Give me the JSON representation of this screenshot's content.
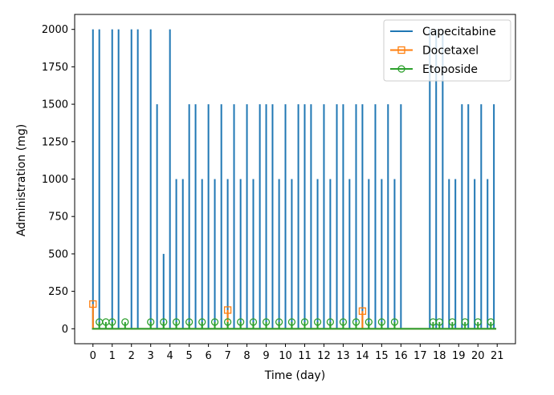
{
  "chart_data": {
    "type": "line",
    "xlabel": "Time (day)",
    "ylabel": "Administration (mg)",
    "xlim": [
      -0.95,
      21.95
    ],
    "ylim": [
      -100,
      2100
    ],
    "x_ticks": [
      0,
      1,
      2,
      3,
      4,
      5,
      6,
      7,
      8,
      9,
      10,
      11,
      12,
      13,
      14,
      15,
      16,
      17,
      18,
      19,
      20,
      21
    ],
    "x_tick_labels": [
      "0",
      "1",
      "2",
      "3",
      "4",
      "5",
      "6",
      "7",
      "8",
      "9",
      "10",
      "11",
      "12",
      "13",
      "14",
      "15",
      "16",
      "17",
      "18",
      "19",
      "20",
      "21"
    ],
    "y_ticks": [
      0,
      250,
      500,
      750,
      1000,
      1250,
      1500,
      1750,
      2000
    ],
    "y_tick_labels": [
      "0",
      "250",
      "500",
      "750",
      "1000",
      "1250",
      "1500",
      "1750",
      "2000"
    ],
    "grid": false,
    "legend_position": "top-right",
    "series": [
      {
        "name": "Capecitabine",
        "color": "#1f77b4",
        "marker": "none",
        "style": "impulse",
        "x": [
          0.0,
          0.33,
          1.0,
          1.33,
          2.0,
          2.33,
          3.0,
          3.33,
          3.67,
          4.0,
          4.33,
          4.67,
          5.0,
          5.33,
          5.67,
          6.0,
          6.33,
          6.67,
          7.0,
          7.33,
          7.67,
          8.0,
          8.33,
          8.67,
          9.0,
          9.33,
          9.67,
          10.0,
          10.33,
          10.67,
          11.0,
          11.33,
          11.67,
          12.0,
          12.33,
          12.67,
          13.0,
          13.33,
          13.67,
          14.0,
          14.33,
          14.67,
          15.0,
          15.33,
          15.67,
          16.0,
          17.5,
          17.83,
          18.17,
          18.5,
          18.83,
          19.17,
          19.5,
          19.83,
          20.17,
          20.5,
          20.83
        ],
        "y": [
          2000,
          2000,
          2000,
          2000,
          2000,
          2000,
          2000,
          1500,
          500,
          2000,
          1000,
          1000,
          1500,
          1500,
          1000,
          1500,
          1000,
          1500,
          1000,
          1500,
          1000,
          1500,
          1000,
          1500,
          1500,
          1500,
          1000,
          1500,
          1000,
          1500,
          1500,
          1500,
          1000,
          1500,
          1000,
          1500,
          1500,
          1000,
          1500,
          1500,
          1000,
          1500,
          1000,
          1500,
          1000,
          1500,
          2000,
          2000,
          2000,
          1000,
          1000,
          1500,
          1500,
          1000,
          1500,
          1000,
          1500
        ]
      },
      {
        "name": "Docetaxel",
        "color": "#ff7f0e",
        "marker": "square",
        "style": "impulse",
        "x": [
          0.0,
          7.0,
          14.0
        ],
        "y": [
          165,
          125,
          118
        ]
      },
      {
        "name": "Etoposide",
        "color": "#2ca02c",
        "marker": "circle",
        "style": "impulse",
        "x": [
          0.33,
          0.67,
          1.0,
          1.67,
          3.0,
          3.67,
          4.33,
          5.0,
          5.67,
          6.33,
          7.0,
          7.67,
          8.33,
          9.0,
          9.67,
          10.33,
          11.0,
          11.67,
          12.33,
          13.0,
          13.67,
          14.33,
          15.0,
          15.67,
          17.67,
          18.0,
          18.67,
          19.33,
          20.0,
          20.67
        ],
        "y": [
          45,
          45,
          45,
          45,
          45,
          45,
          45,
          45,
          45,
          45,
          45,
          45,
          45,
          45,
          45,
          45,
          45,
          45,
          45,
          45,
          45,
          45,
          45,
          45,
          45,
          45,
          45,
          45,
          45,
          45
        ]
      }
    ]
  }
}
